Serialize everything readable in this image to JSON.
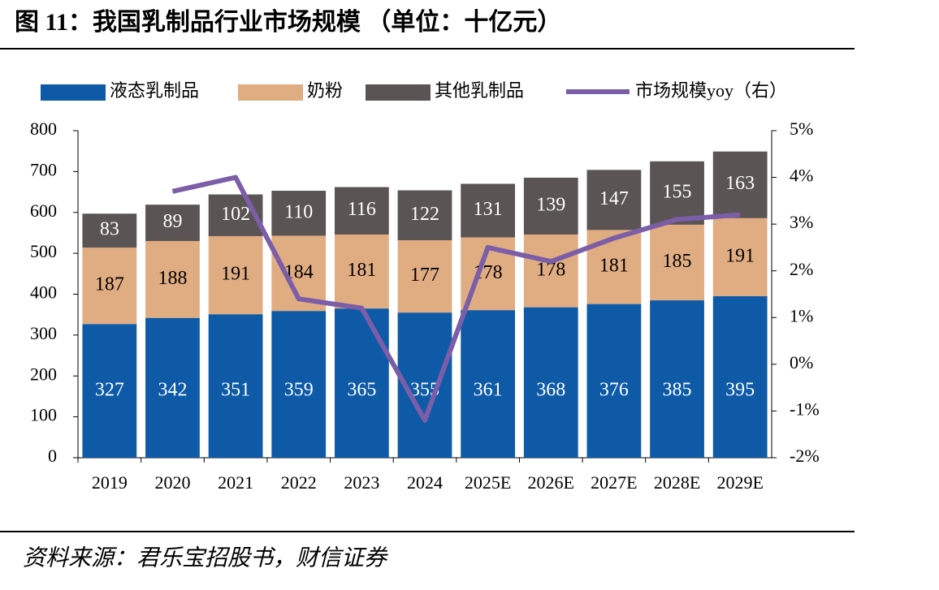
{
  "chart_data": {
    "type": "stacked-bar-line",
    "title": "图 11：我国乳制品行业市场规模 （单位：十亿元）",
    "source": "资料来源：君乐宝招股书，财信证券",
    "categories": [
      "2019",
      "2020",
      "2021",
      "2022",
      "2023",
      "2024",
      "2025E",
      "2026E",
      "2027E",
      "2028E",
      "2029E"
    ],
    "series": [
      {
        "name": "液态乳制品",
        "color": "#0e5aa7",
        "label_color": "#ffffff",
        "values": [
          327,
          342,
          351,
          359,
          365,
          355,
          361,
          368,
          376,
          385,
          395
        ]
      },
      {
        "name": "奶粉",
        "color": "#e0ac82",
        "label_color": "#000000",
        "values": [
          187,
          188,
          191,
          184,
          181,
          177,
          178,
          178,
          181,
          185,
          191
        ]
      },
      {
        "name": "其他乳制品",
        "color": "#5a5454",
        "label_color": "#ffffff",
        "values": [
          83,
          89,
          102,
          110,
          116,
          122,
          131,
          139,
          147,
          155,
          163
        ]
      },
      {
        "name": "市场规模yoy（右）",
        "color": "#7b5ea7",
        "axis": "y2",
        "type": "line",
        "values": [
          null,
          3.7,
          4.0,
          1.4,
          1.2,
          -1.2,
          2.5,
          2.2,
          2.7,
          3.1,
          3.2
        ]
      }
    ],
    "ylim": [
      0,
      800
    ],
    "yticks": [
      0,
      100,
      200,
      300,
      400,
      500,
      600,
      700,
      800
    ],
    "y2lim": [
      -2,
      5
    ],
    "y2ticks": [
      {
        "value": -2,
        "label": "-2%"
      },
      {
        "value": -1,
        "label": "-1%"
      },
      {
        "value": 0,
        "label": "0%"
      },
      {
        "value": 1,
        "label": "1%"
      },
      {
        "value": 2,
        "label": "2%"
      },
      {
        "value": 3,
        "label": "3%"
      },
      {
        "value": 4,
        "label": "4%"
      },
      {
        "value": 5,
        "label": "5%"
      }
    ],
    "grid": false
  }
}
